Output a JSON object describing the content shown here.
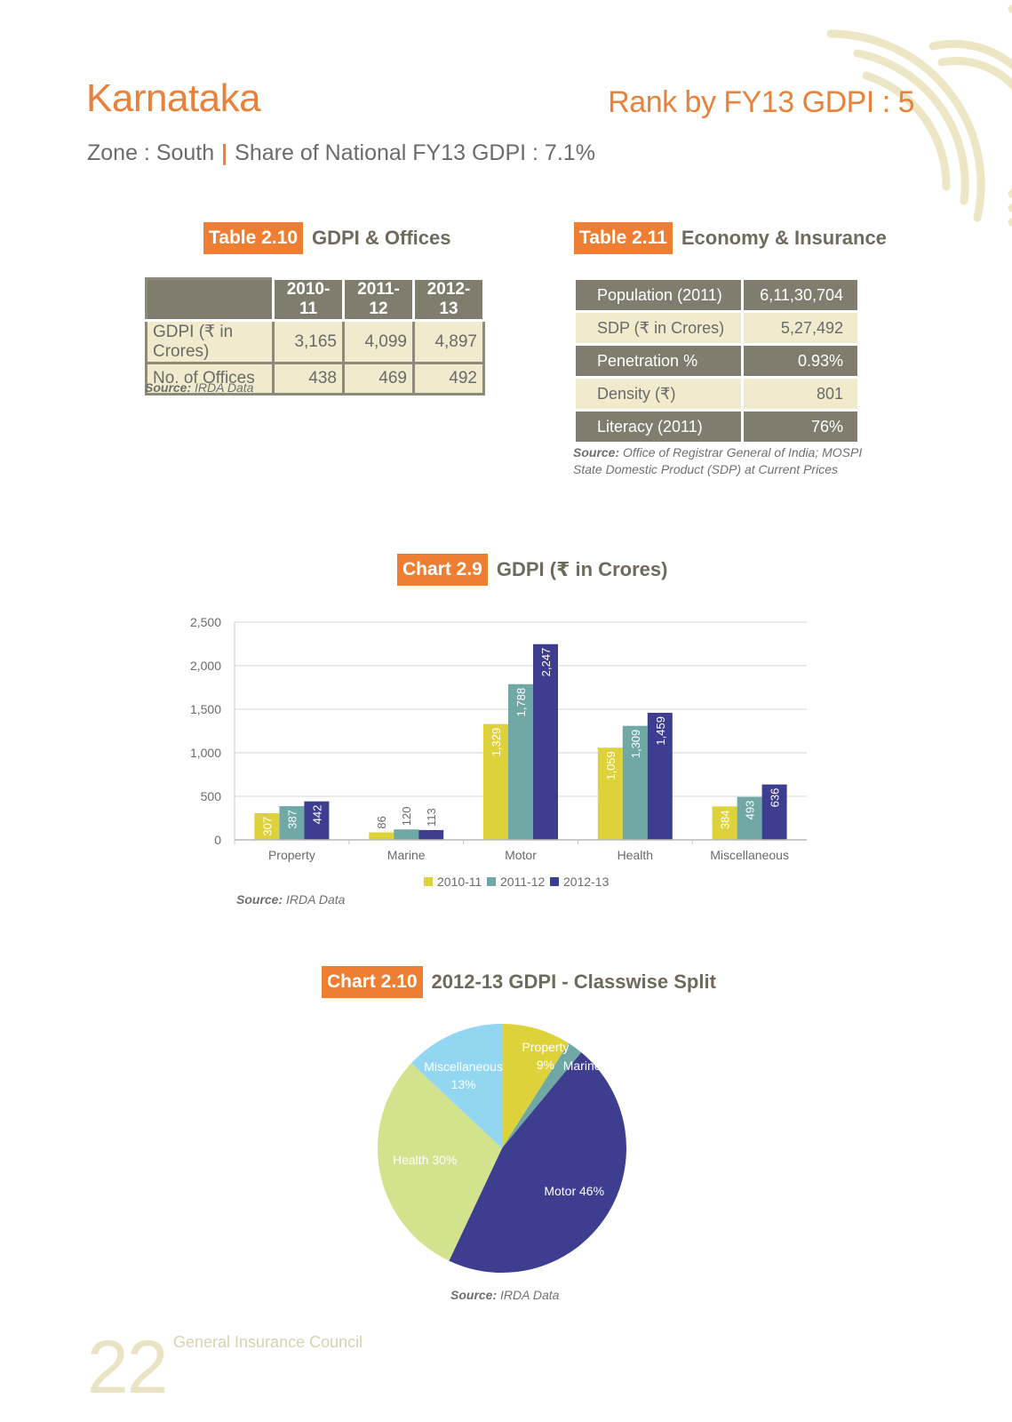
{
  "header": {
    "state": "Karnataka",
    "rank": "Rank by FY13 GDPI : 5",
    "zone": "Zone : South",
    "share": "Share of National FY13 GDPI : 7.1%"
  },
  "table1": {
    "tag": "Table 2.10",
    "title": "GDPI & Offices",
    "columns": [
      "2010-11",
      "2011-12",
      "2012-13"
    ],
    "rows": [
      {
        "label": "GDPI (₹ in Crores)",
        "values": [
          "3,165",
          "4,099",
          "4,897"
        ]
      },
      {
        "label": "No. of Offices",
        "values": [
          "438",
          "469",
          "492"
        ]
      }
    ],
    "source_label": "Source:",
    "source_text": "IRDA Data"
  },
  "table2": {
    "tag": "Table 2.11",
    "title": "Economy & Insurance",
    "rows": [
      {
        "label": "Population (2011)",
        "value": "6,11,30,704"
      },
      {
        "label": "SDP (₹ in Crores)",
        "value": "5,27,492"
      },
      {
        "label": "Penetration %",
        "value": "0.93%"
      },
      {
        "label": "Density (₹)",
        "value": "801"
      },
      {
        "label": "Literacy (2011)",
        "value": "76%"
      }
    ],
    "source_label": "Source:",
    "source_text": "Office of Registrar General of India; MOSPI",
    "source_line2": "State Domestic Product (SDP) at Current Prices"
  },
  "chart1_caption": {
    "tag": "Chart 2.9",
    "title": "GDPI (₹ in Crores)",
    "source_label": "Source:",
    "source_text": "IRDA Data"
  },
  "chart2_caption": {
    "tag": "Chart 2.10",
    "title": "2012-13 GDPI - Classwise Split",
    "source_label": "Source:",
    "source_text": "IRDA Data"
  },
  "chart_data": [
    {
      "type": "bar",
      "categories": [
        "Property",
        "Marine",
        "Motor",
        "Health",
        "Miscellaneous"
      ],
      "series": [
        {
          "name": "2010-11",
          "values": [
            307,
            86,
            1329,
            1059,
            384
          ],
          "color": "#ddd23a"
        },
        {
          "name": "2011-12",
          "values": [
            387,
            120,
            1788,
            1309,
            493
          ],
          "color": "#6fa8a5"
        },
        {
          "name": "2012-13",
          "values": [
            442,
            113,
            2247,
            1459,
            636
          ],
          "color": "#3d3e90"
        }
      ],
      "ylim": [
        0,
        2500
      ],
      "yticks": [
        0,
        500,
        1000,
        1500,
        2000,
        2500
      ],
      "ytick_labels": [
        "0",
        "500",
        "1,000",
        "1,500",
        "2,000",
        "2,500"
      ],
      "data_labels": [
        [
          "307",
          "86",
          "1,329",
          "1,059",
          "384"
        ],
        [
          "387",
          "120",
          "1,788",
          "1,309",
          "493"
        ],
        [
          "442",
          "113",
          "2,247",
          "1,459",
          "636"
        ]
      ],
      "grid": true,
      "legend": "bottom"
    },
    {
      "type": "pie",
      "slices": [
        {
          "label": "Property",
          "pct_label": "9%",
          "value": 9,
          "color": "#ddd23a"
        },
        {
          "label": "Marine",
          "pct_label": "2%",
          "value": 2,
          "color": "#6fa8a5"
        },
        {
          "label": "Motor",
          "pct_label": "46%",
          "value": 46,
          "color": "#3d3e90"
        },
        {
          "label": "Health",
          "pct_label": "30%",
          "value": 30,
          "color": "#d3e28c"
        },
        {
          "label": "Miscellaneous",
          "pct_label": "13%",
          "value": 13,
          "color": "#93d6f1"
        }
      ]
    }
  ],
  "footer": {
    "page_number": "22",
    "publisher": "General Insurance Council"
  }
}
